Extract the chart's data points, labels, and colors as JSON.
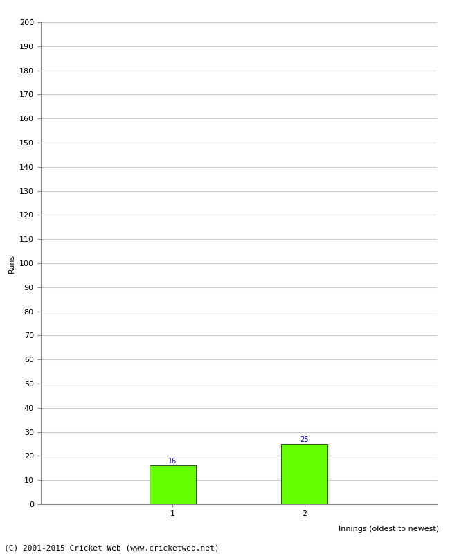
{
  "categories": [
    "1",
    "2"
  ],
  "values": [
    16,
    25
  ],
  "bar_color": "#66ff00",
  "bar_edge_color": "#000000",
  "ylabel": "Runs",
  "xlabel": "Innings (oldest to newest)",
  "ylim": [
    0,
    200
  ],
  "yticks": [
    0,
    10,
    20,
    30,
    40,
    50,
    60,
    70,
    80,
    90,
    100,
    110,
    120,
    130,
    140,
    150,
    160,
    170,
    180,
    190,
    200
  ],
  "annotation_color": "#0000cc",
  "annotation_fontsize": 7,
  "background_color": "#ffffff",
  "grid_color": "#cccccc",
  "footer_text": "(C) 2001-2015 Cricket Web (www.cricketweb.net)",
  "footer_fontsize": 8,
  "xlabel_fontsize": 8,
  "ylabel_fontsize": 8,
  "tick_fontsize": 8,
  "bar_width": 0.35,
  "xlim": [
    0,
    3
  ],
  "bar_positions": [
    1,
    2
  ]
}
